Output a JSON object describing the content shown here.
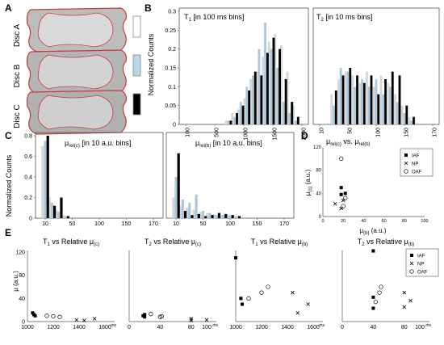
{
  "panel_letters": {
    "A": "A",
    "B": "B",
    "C": "C",
    "D": "D",
    "E": "E"
  },
  "discs": [
    {
      "label": "Disc A",
      "swatch_color": "#ffffff"
    },
    {
      "label": "Disc B",
      "swatch_color": "#b9d6ea"
    },
    {
      "label": "Disc C",
      "swatch_color": "#000000"
    }
  ],
  "colors": {
    "disc_a": "#d6d6d6",
    "disc_b": "#a8c8de",
    "disc_c": "#000000",
    "tissue": "#b8b8b8",
    "outline": "#c83a3a"
  },
  "panel_b": {
    "ylabel": "Normalized Counts",
    "yticks": [
      "0",
      "0.05",
      "0.1",
      "0.15",
      "0.2",
      "0.25",
      "0.3"
    ],
    "left": {
      "title_main": "T",
      "title_sub": "1",
      "title_rest": " [in 100 ms bins]",
      "xticks": [
        "100",
        "500",
        "1000",
        "1500",
        "2000"
      ]
    },
    "right": {
      "title_main": "T",
      "title_sub": "2",
      "title_rest": " [in 10 ms bins]",
      "xticks": [
        "10",
        "50",
        "100",
        "150",
        "170"
      ]
    }
  },
  "panel_c": {
    "ylabel": "Normalized Counts",
    "yticks": [
      "0",
      "0.2",
      "0.4",
      "0.6",
      "0.8"
    ],
    "left": {
      "title_main": "μ",
      "title_sub": "rel(c)",
      "title_rest": " [in 10 a.u. bins]",
      "xticks": [
        "10",
        "50",
        "100",
        "150",
        "170"
      ]
    },
    "right": {
      "title_main": "μ",
      "title_sub": "rel(b)",
      "title_rest": " [in 10 a.u. bins]",
      "xticks": [
        "10",
        "50",
        "100",
        "150",
        "170"
      ]
    }
  },
  "panel_d": {
    "title_main": "μ",
    "title_sub1": "rel(c)",
    "title_mid": " vs. μ",
    "title_sub2": "rel(b)",
    "ylabel_main": "μ",
    "ylabel_sub": "(c)",
    "ylabel_rest": " (a.u.)",
    "xlabel_main": "μ",
    "xlabel_sub": "(b)",
    "xlabel_rest": " (a.u.)",
    "xticks": [
      "0",
      "20",
      "40",
      "60",
      "80",
      "100"
    ],
    "yticks": [
      "0",
      "40",
      "80",
      "120"
    ],
    "legend": [
      {
        "marker": "square",
        "label": "IAF"
      },
      {
        "marker": "x",
        "label": "NP"
      },
      {
        "marker": "circle",
        "label": "OAF"
      }
    ]
  },
  "panel_e": {
    "ylabel": "μ (a.u.)",
    "yticks": [
      "0",
      "40",
      "80",
      "120"
    ],
    "plots": [
      {
        "title_main": "T",
        "title_sub": "1",
        "title_rest": " vs Relative μ",
        "title_sub2": "(c)",
        "xticks": [
          "1000",
          "1200",
          "1400",
          "1600"
        ],
        "xunit": "ms"
      },
      {
        "title_main": "T",
        "title_sub": "2",
        "title_rest": " vs Relative μ",
        "title_sub2": "(c)",
        "xticks": [
          "0",
          "40",
          "80",
          "100"
        ],
        "xunit": "ms"
      },
      {
        "title_main": "T",
        "title_sub": "1",
        "title_rest": " vs Relative μ",
        "title_sub2": "(b)",
        "xticks": [
          "1000",
          "1200",
          "1400",
          "1600"
        ],
        "xunit": "ms"
      },
      {
        "title_main": "T",
        "title_sub": "2",
        "title_rest": " vs Relative μ",
        "title_sub2": "(b)",
        "xticks": [
          "0",
          "40",
          "80",
          "100"
        ],
        "xunit": "ms"
      }
    ],
    "legend": [
      {
        "marker": "square",
        "label": "IAF"
      },
      {
        "marker": "x",
        "label": "NP"
      },
      {
        "marker": "circle",
        "label": "OAF"
      }
    ]
  },
  "chart_data": [
    {
      "id": "B-T1",
      "type": "bar",
      "title": "T1 [in 100 ms bins]",
      "ylabel": "Normalized Counts",
      "xlim": [
        100,
        2000
      ],
      "ylim": [
        0,
        0.3
      ],
      "x": [
        800,
        900,
        1000,
        1100,
        1200,
        1300,
        1400,
        1500,
        1600,
        1700,
        1800,
        1900
      ],
      "series": [
        {
          "name": "Disc A",
          "values": [
            0.01,
            0.03,
            0.04,
            0.07,
            0.12,
            0.14,
            0.18,
            0.22,
            0.24,
            0.21,
            0.14,
            0.05
          ]
        },
        {
          "name": "Disc B",
          "values": [
            0.01,
            0.02,
            0.06,
            0.1,
            0.13,
            0.2,
            0.27,
            0.2,
            0.15,
            0.06,
            0.03,
            0.01
          ]
        },
        {
          "name": "Disc C",
          "values": [
            0.01,
            0.03,
            0.05,
            0.09,
            0.14,
            0.13,
            0.19,
            0.23,
            0.2,
            0.12,
            0.06,
            0.02
          ]
        }
      ]
    },
    {
      "id": "B-T2",
      "type": "bar",
      "title": "T2 [in 10 ms bins]",
      "xlim": [
        10,
        170
      ],
      "ylim": [
        0,
        0.3
      ],
      "x": [
        30,
        40,
        50,
        60,
        70,
        80,
        90,
        100,
        110,
        120,
        130,
        140
      ],
      "series": [
        {
          "name": "Disc A",
          "values": [
            0.08,
            0.12,
            0.14,
            0.13,
            0.11,
            0.14,
            0.1,
            0.13,
            0.11,
            0.08,
            0.05,
            0.02
          ]
        },
        {
          "name": "Disc B",
          "values": [
            0.05,
            0.15,
            0.14,
            0.1,
            0.12,
            0.1,
            0.12,
            0.08,
            0.1,
            0.06,
            0.03,
            0.01
          ]
        },
        {
          "name": "Disc C",
          "values": [
            0.09,
            0.13,
            0.15,
            0.13,
            0.11,
            0.13,
            0.08,
            0.12,
            0.14,
            0.13,
            0.05,
            0.02
          ]
        }
      ]
    },
    {
      "id": "C-mu-c",
      "type": "bar",
      "title": "μrel(c) [in 10 a.u. bins]",
      "xlim": [
        10,
        170
      ],
      "ylim": [
        0,
        0.8
      ],
      "x": [
        10,
        20,
        30,
        40
      ],
      "series": [
        {
          "name": "Disc A",
          "values": [
            0.7,
            0.2,
            0.08,
            0.03
          ]
        },
        {
          "name": "Disc B",
          "values": [
            0.75,
            0.15,
            0.06,
            0.02
          ]
        },
        {
          "name": "Disc C",
          "values": [
            0.8,
            0.12,
            0.2,
            0.02
          ]
        }
      ]
    },
    {
      "id": "C-mu-b",
      "type": "bar",
      "title": "μrel(b) [in 10 a.u. bins]",
      "xlim": [
        10,
        170
      ],
      "ylim": [
        0,
        0.8
      ],
      "x": [
        10,
        20,
        30,
        40,
        50,
        60,
        70,
        80,
        90,
        100
      ],
      "series": [
        {
          "name": "Disc A",
          "values": [
            0.2,
            0.12,
            0.1,
            0.08,
            0.06,
            0.05,
            0.04,
            0.03,
            0.03,
            0.02
          ]
        },
        {
          "name": "Disc B",
          "values": [
            0.4,
            0.18,
            0.15,
            0.23,
            0.07,
            0.05,
            0.03,
            0.03,
            0.03,
            0.02
          ]
        },
        {
          "name": "Disc C",
          "values": [
            0.63,
            0.07,
            0.03,
            0.04,
            0.02,
            0.03,
            0.05,
            0.04,
            0.03,
            0.02
          ]
        }
      ]
    },
    {
      "id": "D",
      "type": "scatter",
      "title": "μrel(c) vs. μrel(b)",
      "xlabel": "μ(b) (a.u.)",
      "ylabel": "μ(c) (a.u.)",
      "xlim": [
        0,
        100
      ],
      "ylim": [
        0,
        120
      ],
      "series": [
        {
          "name": "IAF",
          "values": [
            [
              18,
              50
            ],
            [
              22,
              40
            ],
            [
              18,
              38
            ]
          ]
        },
        {
          "name": "NP",
          "values": [
            [
              12,
              22
            ],
            [
              20,
              28
            ],
            [
              18,
              14
            ]
          ]
        },
        {
          "name": "OAF",
          "values": [
            [
              18,
              100
            ],
            [
              22,
              32
            ],
            [
              20,
              18
            ]
          ]
        }
      ]
    },
    {
      "id": "E1",
      "type": "scatter",
      "title": "T1 vs Relative μ(c)",
      "xlim": [
        1000,
        1600
      ],
      "ylim": [
        0,
        120
      ],
      "series": [
        {
          "name": "IAF",
          "values": [
            [
              1040,
              15
            ],
            [
              1060,
              10
            ],
            [
              1050,
              12
            ]
          ]
        },
        {
          "name": "NP",
          "values": [
            [
              1380,
              3
            ],
            [
              1520,
              5
            ],
            [
              1440,
              2
            ]
          ]
        },
        {
          "name": "OAF",
          "values": [
            [
              1150,
              10
            ],
            [
              1250,
              8
            ],
            [
              1200,
              9
            ]
          ]
        }
      ]
    },
    {
      "id": "E2",
      "type": "scatter",
      "title": "T2 vs Relative μ(c)",
      "xlim": [
        0,
        100
      ],
      "ylim": [
        0,
        120
      ],
      "series": [
        {
          "name": "IAF",
          "values": [
            [
              20,
              12
            ],
            [
              20,
              8
            ],
            [
              18,
              10
            ]
          ]
        },
        {
          "name": "NP",
          "values": [
            [
              80,
              5
            ],
            [
              100,
              3
            ],
            [
              80,
              2
            ]
          ]
        },
        {
          "name": "OAF",
          "values": [
            [
              40,
              8
            ],
            [
              42,
              9
            ],
            [
              28,
              13
            ]
          ]
        }
      ]
    },
    {
      "id": "E3",
      "type": "scatter",
      "title": "T1 vs Relative μ(b)",
      "xlim": [
        1000,
        1600
      ],
      "ylim": [
        0,
        120
      ],
      "series": [
        {
          "name": "IAF",
          "values": [
            [
              1000,
              110
            ],
            [
              1040,
              40
            ],
            [
              1050,
              30
            ]
          ]
        },
        {
          "name": "NP",
          "values": [
            [
              1440,
              50
            ],
            [
              1480,
              15
            ],
            [
              1560,
              30
            ]
          ]
        },
        {
          "name": "OAF",
          "values": [
            [
              1200,
              50
            ],
            [
              1250,
              60
            ],
            [
              1100,
              40
            ]
          ]
        }
      ]
    },
    {
      "id": "E4",
      "type": "scatter",
      "title": "T2 vs Relative μ(b)",
      "xlim": [
        0,
        100
      ],
      "ylim": [
        0,
        120
      ],
      "series": [
        {
          "name": "IAF",
          "values": [
            [
              40,
              122
            ],
            [
              40,
              42
            ],
            [
              40,
              23
            ]
          ]
        },
        {
          "name": "NP",
          "values": [
            [
              80,
              50
            ],
            [
              80,
              25
            ],
            [
              88,
              36
            ]
          ]
        },
        {
          "name": "OAF",
          "values": [
            [
              50,
              60
            ],
            [
              48,
              50
            ],
            [
              43,
              34
            ]
          ]
        }
      ]
    }
  ]
}
